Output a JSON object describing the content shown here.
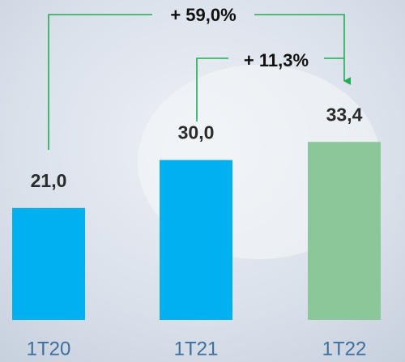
{
  "chart_data": {
    "type": "bar",
    "categories": [
      "1T20",
      "1T21",
      "1T22"
    ],
    "values": [
      21.0,
      30.0,
      33.4
    ],
    "value_labels": [
      "21,0",
      "30,0",
      "33,4"
    ],
    "colors": [
      "#00b0f0",
      "#00b0f0",
      "#8cc799"
    ],
    "annotations": [
      "+ 59,0%",
      "+ 11,3%"
    ]
  }
}
